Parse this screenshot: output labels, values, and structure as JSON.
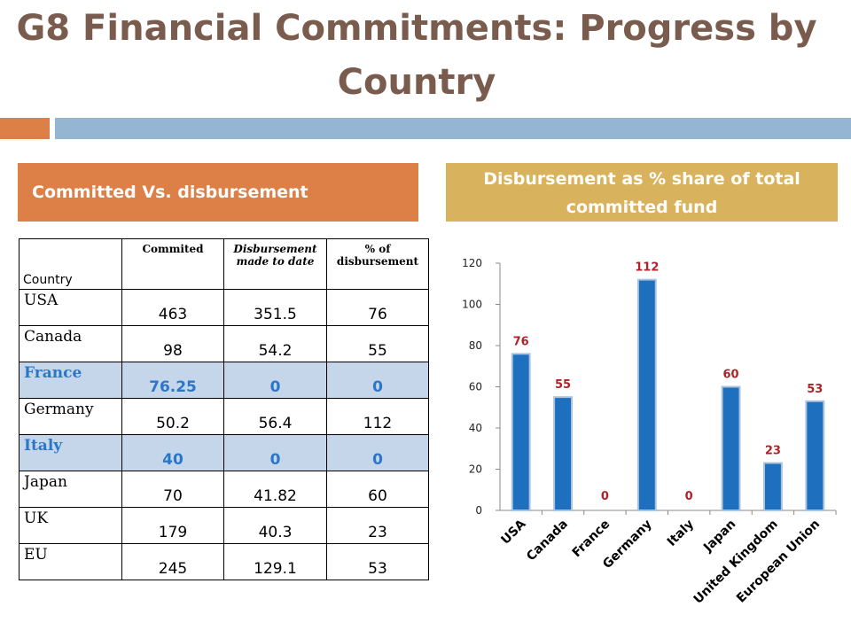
{
  "slide": {
    "title": "G8 Financial Commitments: Progress by Country",
    "left_header": "Committed Vs. disbursement",
    "right_header": "Disbursement  as % share of total committed fund"
  },
  "table": {
    "headers": [
      "Country",
      "Commited",
      "Disbursement made to date",
      "% of disbursement"
    ],
    "rows": [
      {
        "country": "USA",
        "committed": "463",
        "disbursed": "351.5",
        "pct": "76",
        "highlight": false
      },
      {
        "country": "Canada",
        "committed": "98",
        "disbursed": "54.2",
        "pct": "55",
        "highlight": false
      },
      {
        "country": "France",
        "committed": "76.25",
        "disbursed": "0",
        "pct": "0",
        "highlight": true
      },
      {
        "country": "Germany",
        "committed": "50.2",
        "disbursed": "56.4",
        "pct": "112",
        "highlight": false
      },
      {
        "country": "Italy",
        "committed": "40",
        "disbursed": "0",
        "pct": "0",
        "highlight": true
      },
      {
        "country": "Japan",
        "committed": "70",
        "disbursed": "41.82",
        "pct": "60",
        "highlight": false
      },
      {
        "country": "UK",
        "committed": "179",
        "disbursed": "40.3",
        "pct": "23",
        "highlight": false
      },
      {
        "country": "EU",
        "committed": "245",
        "disbursed": "129.1",
        "pct": "53",
        "highlight": false
      }
    ]
  },
  "chart_data": {
    "type": "bar",
    "categories": [
      "USA",
      "Canada",
      "France",
      "Germany",
      "Italy",
      "Japan",
      "United Kingdom",
      "European Union"
    ],
    "values": [
      76,
      55,
      0,
      112,
      0,
      60,
      23,
      53
    ],
    "ylim": [
      0,
      120
    ],
    "yticks": [
      0,
      20,
      40,
      60,
      80,
      100,
      120
    ],
    "grid": false,
    "bar_color": "#1f6fbf",
    "label_color": "#b0222a"
  },
  "colors": {
    "title": "#7a5c4e",
    "accent_orange": "#dd8047",
    "accent_blue": "#94b6d2",
    "accent_gold": "#d8b25c",
    "highlight_row": "#c6d6ea",
    "highlight_text": "#2a77c9"
  }
}
